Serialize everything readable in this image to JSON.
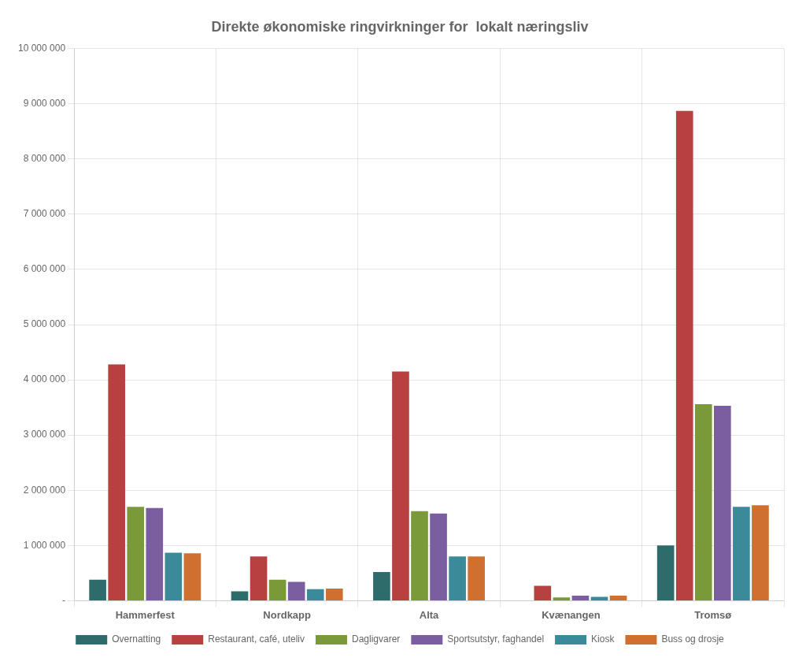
{
  "chart_data": {
    "type": "bar",
    "title": "Direkte økonomiske ringvirkninger for  lokalt næringsliv",
    "categories": [
      "Hammerfest",
      "Nordkapp",
      "Alta",
      "Kvænangen",
      "Tromsø"
    ],
    "series": [
      {
        "name": "Overnatting",
        "color": "#2E6B6B",
        "values": [
          380000,
          170000,
          520000,
          0,
          1000000
        ]
      },
      {
        "name": "Restaurant, café, uteliv",
        "color": "#B94040",
        "values": [
          4280000,
          800000,
          4150000,
          270000,
          8870000
        ]
      },
      {
        "name": "Dagligvarer",
        "color": "#7A9A3A",
        "values": [
          1700000,
          380000,
          1620000,
          60000,
          3560000
        ]
      },
      {
        "name": "Sportsutstyr, faghandel",
        "color": "#7A5EA0",
        "values": [
          1680000,
          340000,
          1580000,
          90000,
          3530000
        ]
      },
      {
        "name": "Kiosk",
        "color": "#3A8A9A",
        "values": [
          870000,
          210000,
          800000,
          70000,
          1700000
        ]
      },
      {
        "name": "Buss og drosje",
        "color": "#D07030",
        "values": [
          860000,
          220000,
          800000,
          90000,
          1730000
        ]
      }
    ],
    "ylim": [
      0,
      10000000
    ],
    "yticks": [
      {
        "value": 0,
        "label": "-"
      },
      {
        "value": 1000000,
        "label": "1 000 000"
      },
      {
        "value": 2000000,
        "label": "2 000 000"
      },
      {
        "value": 3000000,
        "label": "3 000 000"
      },
      {
        "value": 4000000,
        "label": "4 000 000"
      },
      {
        "value": 5000000,
        "label": "5 000 000"
      },
      {
        "value": 6000000,
        "label": "6 000 000"
      },
      {
        "value": 7000000,
        "label": "7 000 000"
      },
      {
        "value": 8000000,
        "label": "8 000 000"
      },
      {
        "value": 9000000,
        "label": "9 000 000"
      },
      {
        "value": 10000000,
        "label": "10 000 000"
      }
    ],
    "grid": true,
    "legend": "bottom"
  }
}
